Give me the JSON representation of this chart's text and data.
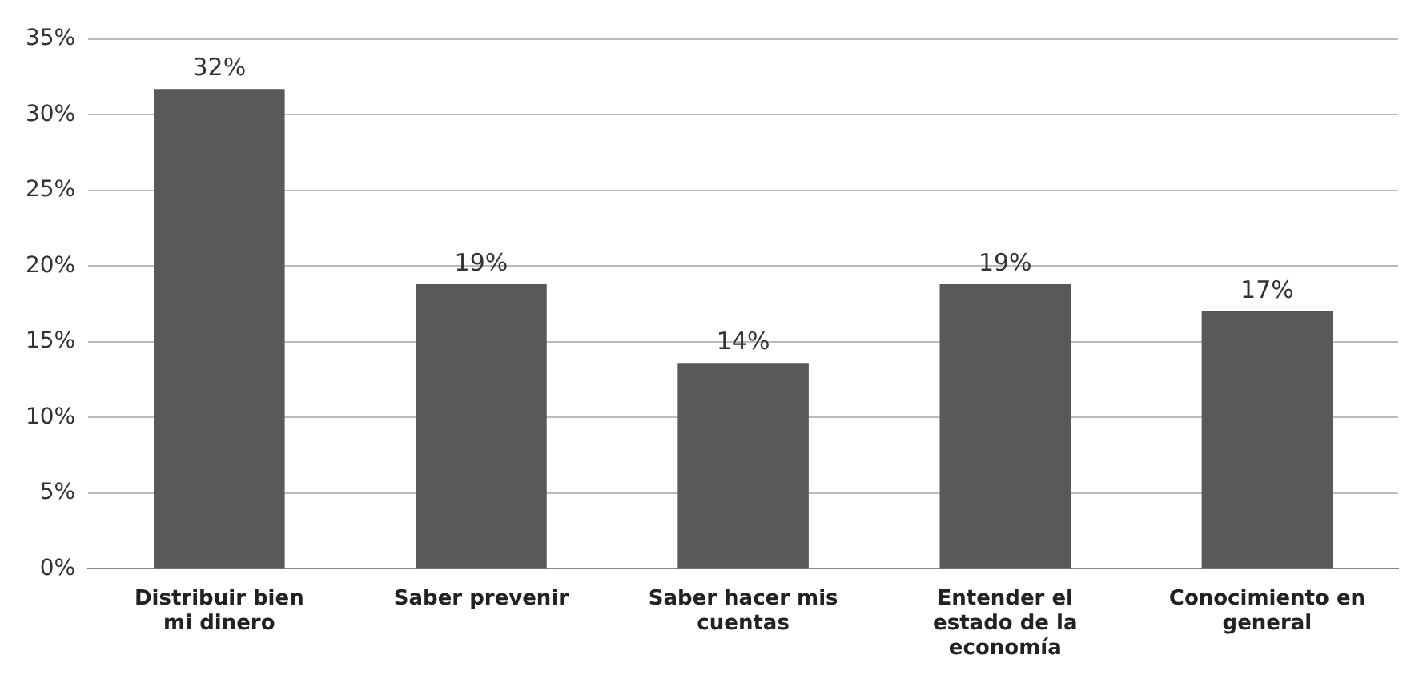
{
  "chart_data": {
    "type": "bar",
    "categories": [
      "Distribuir bien mi dinero",
      "Saber prevenir",
      "Saber hacer mis cuentas",
      "Entender el estado de la economía",
      "Conocimiento en general"
    ],
    "values": [
      31.7,
      18.8,
      13.6,
      18.8,
      17.0
    ],
    "value_labels": [
      "32%",
      "19%",
      "14%",
      "19%",
      "17%"
    ],
    "color": "#595959",
    "ylim": [
      0,
      35
    ],
    "yticks": [
      {
        "value": 0,
        "label": "0%"
      },
      {
        "value": 5,
        "label": "5%"
      },
      {
        "value": 10,
        "label": "10%"
      },
      {
        "value": 15,
        "label": "15%"
      },
      {
        "value": 20,
        "label": "20%"
      },
      {
        "value": 25,
        "label": "25%"
      },
      {
        "value": 30,
        "label": "30%"
      },
      {
        "value": 35,
        "label": "35%"
      }
    ],
    "grid": "y",
    "legend": false
  }
}
